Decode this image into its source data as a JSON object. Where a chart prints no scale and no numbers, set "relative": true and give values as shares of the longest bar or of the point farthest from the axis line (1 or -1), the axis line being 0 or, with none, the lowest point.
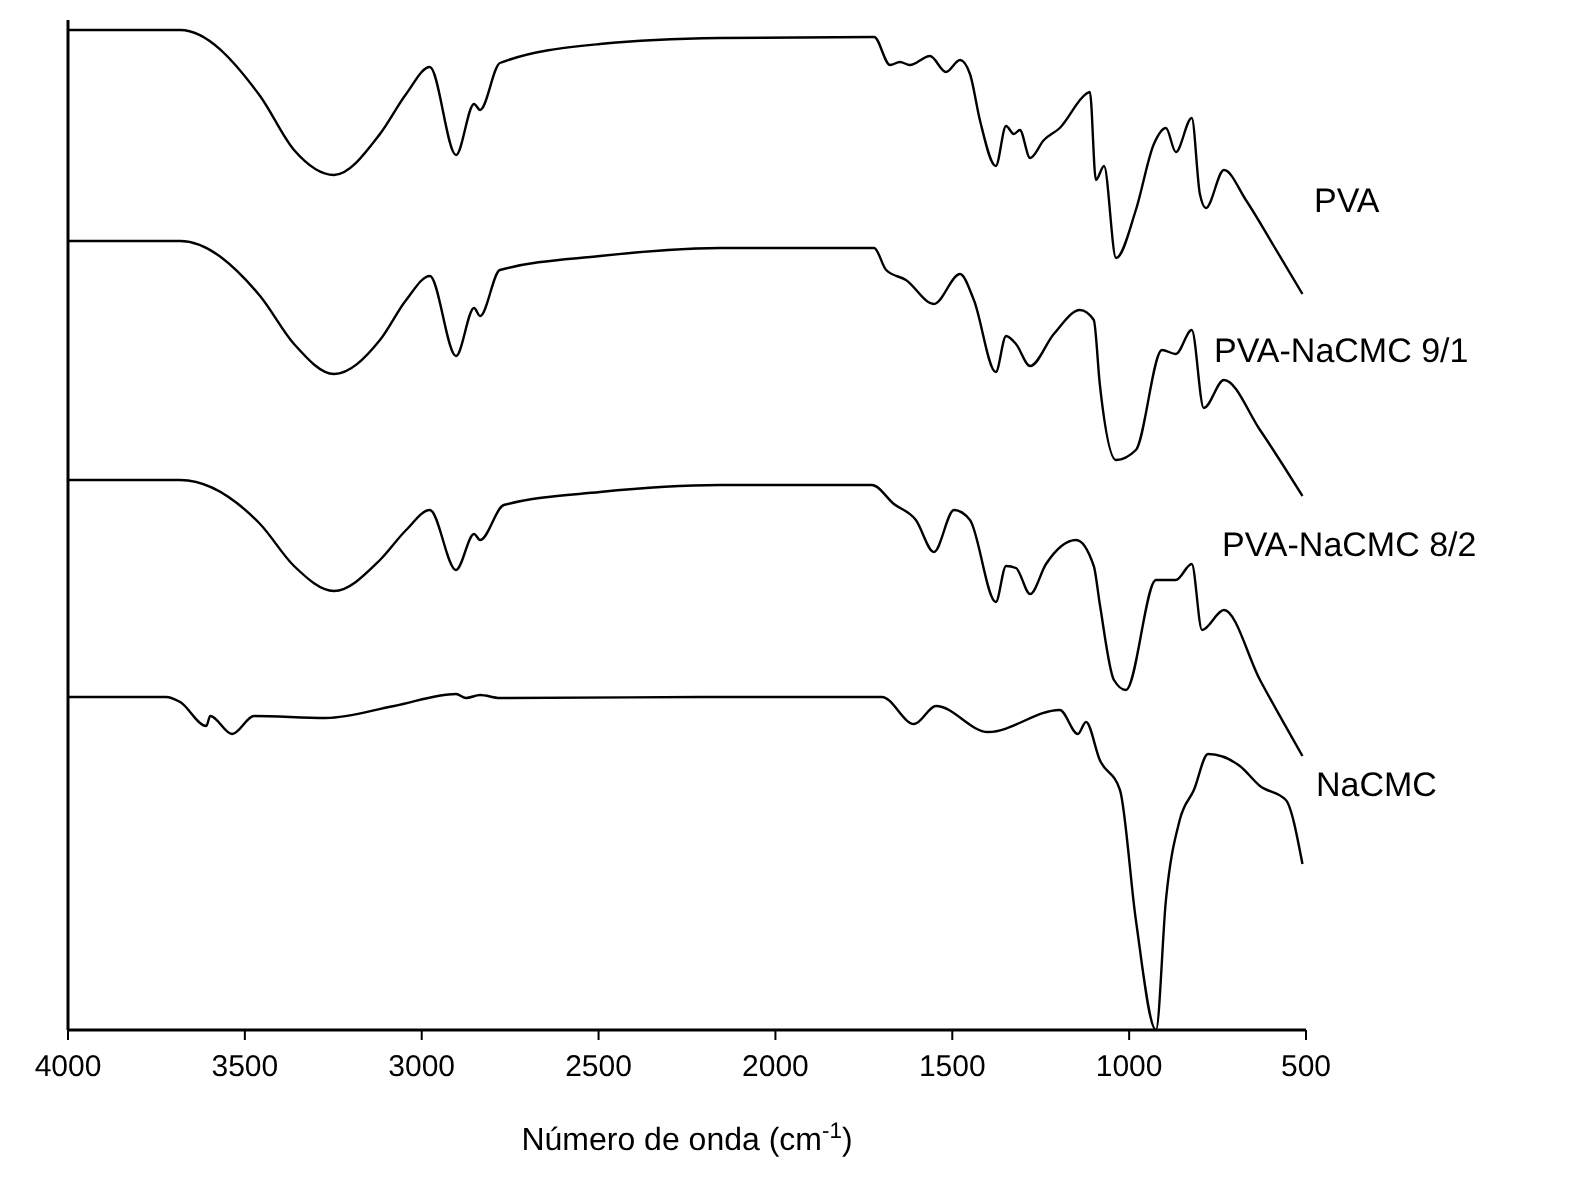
{
  "chart_data": {
    "type": "line",
    "relative": true,
    "xlabel": "Número de onda (cm$^{-1}$)",
    "xlim": [
      4000,
      500
    ],
    "xticks": [
      4000,
      3500,
      3000,
      2500,
      2000,
      1500,
      1000,
      500
    ],
    "legend": false,
    "grid": false,
    "series": [
      {
        "name": "PVA",
        "color": "#000000",
        "x": [
          4000,
          3683,
          3457,
          3361,
          3248,
          3118,
          3044,
          2977,
          2903,
          2852,
          2835,
          2779,
          2496,
          2157,
          1721,
          1676,
          1648,
          1620,
          1563,
          1518,
          1478,
          1450,
          1422,
          1377,
          1348,
          1326,
          1309,
          1280,
          1241,
          1196,
          1122,
          1111,
          1094,
          1071,
          1037,
          981,
          930,
          896,
          868,
          823,
          800,
          783,
          732,
          670,
          591,
          510
        ],
        "values": [
          1.0,
          1.0,
          0.934,
          0.88,
          0.855,
          0.896,
          0.936,
          0.963,
          0.875,
          0.926,
          0.92,
          0.967,
          0.986,
          0.992,
          0.993,
          0.965,
          0.968,
          0.965,
          0.974,
          0.958,
          0.97,
          0.956,
          0.91,
          0.864,
          0.904,
          0.896,
          0.9,
          0.872,
          0.89,
          0.902,
          0.936,
          0.938,
          0.85,
          0.864,
          0.772,
          0.82,
          0.886,
          0.902,
          0.878,
          0.912,
          0.836,
          0.822,
          0.86,
          0.83,
          0.784,
          0.736
        ]
      },
      {
        "name": "PVA-NaCMC 9/1",
        "color": "#000000",
        "x": [
          4000,
          3683,
          3457,
          3361,
          3248,
          3118,
          3044,
          2977,
          2903,
          2852,
          2835,
          2779,
          2496,
          2157,
          1721,
          1687,
          1631,
          1552,
          1478,
          1439,
          1377,
          1348,
          1320,
          1280,
          1213,
          1139,
          1100,
          1083,
          1037,
          981,
          907,
          868,
          823,
          789,
          732,
          630,
          510
        ],
        "values": [
          0.789,
          0.789,
          0.734,
          0.686,
          0.656,
          0.69,
          0.73,
          0.754,
          0.674,
          0.722,
          0.714,
          0.76,
          0.774,
          0.782,
          0.782,
          0.76,
          0.75,
          0.726,
          0.756,
          0.73,
          0.658,
          0.694,
          0.686,
          0.664,
          0.696,
          0.72,
          0.71,
          0.646,
          0.57,
          0.58,
          0.68,
          0.676,
          0.7,
          0.622,
          0.65,
          0.6,
          0.534
        ]
      },
      {
        "name": "PVA-NaCMC 8/2",
        "color": "#000000",
        "x": [
          4000,
          3683,
          3457,
          3361,
          3248,
          3118,
          3044,
          2977,
          2903,
          2852,
          2835,
          2768,
          2496,
          2157,
          1727,
          1665,
          1603,
          1552,
          1495,
          1450,
          1377,
          1348,
          1320,
          1280,
          1235,
          1150,
          1100,
          1083,
          1043,
          1009,
          924,
          868,
          823,
          794,
          732,
          630,
          510
        ],
        "values": [
          0.55,
          0.55,
          0.506,
          0.464,
          0.439,
          0.47,
          0.5,
          0.52,
          0.46,
          0.496,
          0.49,
          0.525,
          0.538,
          0.545,
          0.545,
          0.526,
          0.51,
          0.478,
          0.52,
          0.51,
          0.428,
          0.464,
          0.462,
          0.436,
          0.466,
          0.49,
          0.464,
          0.426,
          0.35,
          0.34,
          0.45,
          0.45,
          0.466,
          0.4,
          0.42,
          0.35,
          0.274
        ]
      },
      {
        "name": "NaCMC",
        "color": "#000000",
        "x": [
          4000,
          3723,
          3683,
          3609,
          3598,
          3536,
          3474,
          3271,
          3078,
          2903,
          2875,
          2835,
          2779,
          2157,
          1699,
          1608,
          1546,
          1399,
          1196,
          1145,
          1122,
          1083,
          1026,
          981,
          924,
          896,
          857,
          817,
          777,
          687,
          630,
          557,
          510
        ],
        "values": [
          0.333,
          0.333,
          0.328,
          0.304,
          0.314,
          0.296,
          0.314,
          0.312,
          0.324,
          0.336,
          0.332,
          0.335,
          0.332,
          0.333,
          0.333,
          0.306,
          0.324,
          0.298,
          0.32,
          0.296,
          0.308,
          0.27,
          0.24,
          0.11,
          0,
          0.13,
          0.21,
          0.24,
          0.276,
          0.264,
          0.244,
          0.23,
          0.166
        ]
      }
    ]
  }
}
